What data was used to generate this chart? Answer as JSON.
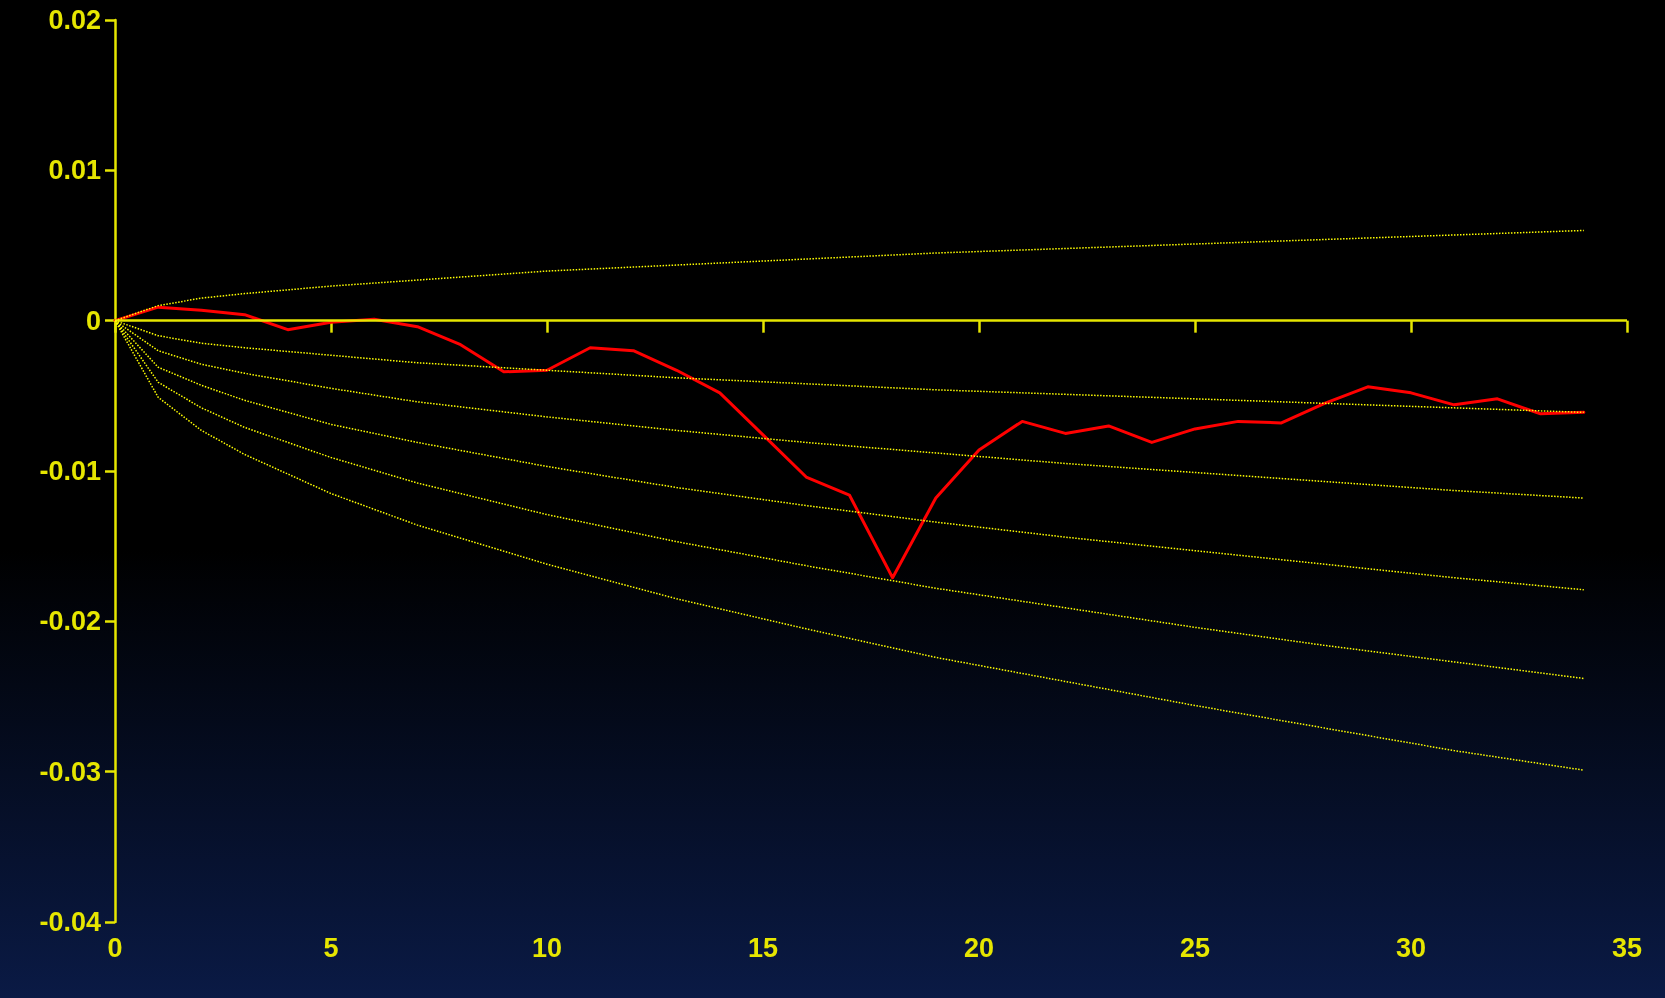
{
  "chart_data": {
    "type": "line",
    "xlim": [
      0,
      35
    ],
    "xticks": [
      0,
      5,
      10,
      15,
      20,
      25,
      30,
      35
    ],
    "ylim": [
      -0.04,
      0.02
    ],
    "yticks": [
      -0.04,
      -0.03,
      -0.02,
      -0.01,
      0,
      0.01,
      0.02
    ],
    "grid": false,
    "marker": "none",
    "ref_lines": [
      {
        "axis": "y",
        "value": 0
      }
    ],
    "series": [
      {
        "color": "#ff0000",
        "line_style": "solid",
        "x": [
          0,
          1,
          2,
          3,
          4,
          5,
          6,
          7,
          8,
          9,
          10,
          11,
          12,
          13,
          14,
          15,
          16,
          17,
          18,
          19,
          20,
          21,
          22,
          23,
          24,
          25,
          26,
          27,
          28,
          29,
          30,
          31,
          32,
          33,
          34
        ],
        "values": [
          0,
          0.0009,
          0.0007,
          0.0004,
          -0.0006,
          -0.0001,
          0.0001,
          -0.0004,
          -0.0016,
          -0.0034,
          -0.0033,
          -0.0018,
          -0.002,
          -0.0033,
          -0.0048,
          -0.0076,
          -0.0104,
          -0.0116,
          -0.0171,
          -0.0118,
          -0.0086,
          -0.0067,
          -0.0075,
          -0.007,
          -0.0081,
          -0.0072,
          -0.0067,
          -0.0068,
          -0.0055,
          -0.0044,
          -0.0048,
          -0.0056,
          -0.0052,
          -0.0062,
          -0.0061
        ]
      },
      {
        "color": "#ffff00",
        "line_style": "dotted",
        "x": [
          0,
          1,
          2,
          3,
          5,
          7,
          10,
          13,
          16,
          19,
          22,
          25,
          28,
          31,
          34
        ],
        "values": [
          0,
          0.001,
          0.0015,
          0.0018,
          0.0023,
          0.0027,
          0.0033,
          0.0037,
          0.0041,
          0.0045,
          0.0048,
          0.0051,
          0.0054,
          0.0057,
          0.006
        ]
      },
      {
        "color": "#ffff00",
        "line_style": "dotted",
        "x": [
          0,
          1,
          2,
          3,
          5,
          7,
          10,
          13,
          16,
          19,
          22,
          25,
          28,
          31,
          34
        ],
        "values": [
          0,
          -0.001,
          -0.0015,
          -0.0018,
          -0.0023,
          -0.0028,
          -0.0033,
          -0.0038,
          -0.0042,
          -0.0046,
          -0.0049,
          -0.0052,
          -0.0055,
          -0.0058,
          -0.0061
        ]
      },
      {
        "color": "#ffff00",
        "line_style": "dotted",
        "x": [
          0,
          1,
          2,
          3,
          5,
          7,
          10,
          13,
          16,
          19,
          22,
          25,
          28,
          31,
          34
        ],
        "values": [
          0,
          -0.002,
          -0.0029,
          -0.0035,
          -0.0045,
          -0.0054,
          -0.0064,
          -0.0073,
          -0.0081,
          -0.0088,
          -0.0095,
          -0.0101,
          -0.0107,
          -0.0113,
          -0.0118
        ]
      },
      {
        "color": "#ffff00",
        "line_style": "dotted",
        "x": [
          0,
          1,
          2,
          3,
          5,
          7,
          10,
          13,
          16,
          19,
          22,
          25,
          28,
          31,
          34
        ],
        "values": [
          0,
          -0.0031,
          -0.0043,
          -0.0053,
          -0.0069,
          -0.0081,
          -0.0097,
          -0.0111,
          -0.0123,
          -0.0134,
          -0.0144,
          -0.0153,
          -0.0162,
          -0.0171,
          -0.0179
        ]
      },
      {
        "color": "#ffff00",
        "line_style": "dotted",
        "x": [
          0,
          1,
          2,
          3,
          5,
          7,
          10,
          13,
          16,
          19,
          22,
          25,
          28,
          31,
          34
        ],
        "values": [
          0,
          -0.0041,
          -0.0058,
          -0.0071,
          -0.0091,
          -0.0108,
          -0.0129,
          -0.0147,
          -0.0163,
          -0.0178,
          -0.0191,
          -0.0204,
          -0.0216,
          -0.0227,
          -0.0238
        ]
      },
      {
        "color": "#ffff00",
        "line_style": "dotted",
        "x": [
          0,
          1,
          2,
          3,
          5,
          7,
          10,
          13,
          16,
          19,
          22,
          25,
          28,
          31,
          34
        ],
        "values": [
          0,
          -0.0051,
          -0.0073,
          -0.0089,
          -0.0115,
          -0.0136,
          -0.0162,
          -0.0185,
          -0.0205,
          -0.0224,
          -0.024,
          -0.0256,
          -0.0271,
          -0.0286,
          -0.0299
        ]
      }
    ]
  }
}
